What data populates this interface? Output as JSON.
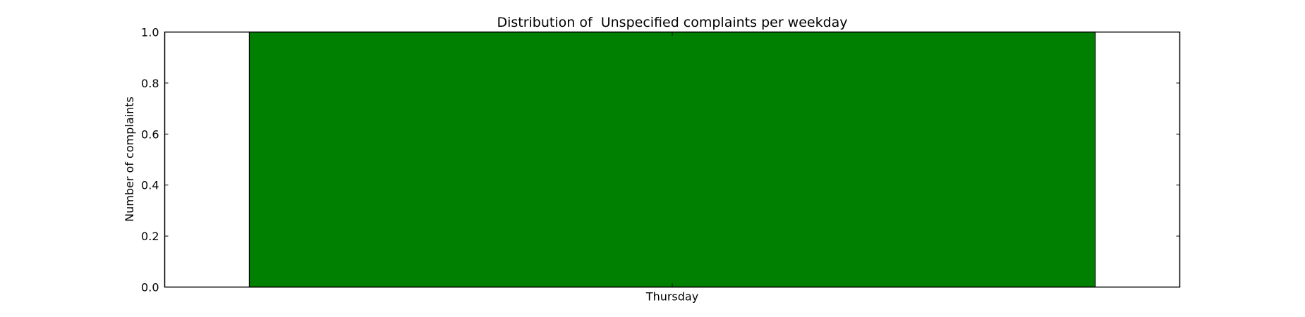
{
  "chart_data": {
    "type": "bar",
    "title": "Distribution of  Unspecified complaints per weekday",
    "xlabel": "",
    "ylabel": "Number of complaints",
    "categories": [
      "Thursday"
    ],
    "values": [
      1
    ],
    "ylim": [
      0,
      1.0
    ],
    "yticks": [
      "0.0",
      "0.2",
      "0.4",
      "0.6",
      "0.8",
      "1.0"
    ],
    "grid": false,
    "legend": "none",
    "bar_color": "#008000"
  }
}
